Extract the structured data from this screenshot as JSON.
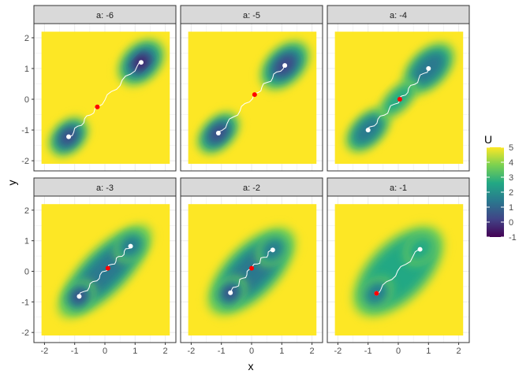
{
  "chart_data": {
    "type": "heatmap",
    "xlabel": "x",
    "ylabel": "y",
    "xlim": [
      -2.35,
      2.35
    ],
    "ylim": [
      -2.33,
      2.46
    ],
    "x_ticks": [
      -2,
      -1,
      0,
      1,
      2
    ],
    "y_ticks": [
      -2,
      -1,
      0,
      1,
      2
    ],
    "grid": true,
    "legend": {
      "title": "U",
      "position": "right",
      "range": [
        -1,
        5
      ],
      "ticks": [
        5,
        4,
        3,
        2,
        1,
        0,
        -1
      ],
      "colors": [
        "#440154",
        "#414487",
        "#2A788E",
        "#22A884",
        "#7AD151",
        "#FDE725"
      ]
    },
    "facets": [
      {
        "label": "a: -6",
        "a": -6,
        "minima": [
          [
            -1.2,
            -1.22
          ],
          [
            1.2,
            1.2
          ]
        ],
        "saddle": [
          -0.25,
          -0.25
        ]
      },
      {
        "label": "a: -5",
        "a": -5,
        "minima": [
          [
            -1.1,
            -1.1
          ],
          [
            1.1,
            1.1
          ]
        ],
        "saddle": [
          0.1,
          0.15
        ]
      },
      {
        "label": "a: -4",
        "a": -4,
        "minima": [
          [
            -1.0,
            -1.0
          ],
          [
            1.0,
            1.0
          ]
        ],
        "saddle": [
          0.05,
          0.0
        ]
      },
      {
        "label": "a: -3",
        "a": -3,
        "minima": [
          [
            -0.85,
            -0.82
          ],
          [
            0.85,
            0.82
          ]
        ],
        "saddle": [
          0.1,
          0.1
        ]
      },
      {
        "label": "a: -2",
        "a": -2,
        "minima": [
          [
            -0.7,
            -0.7
          ],
          [
            0.7,
            0.7
          ]
        ],
        "saddle": [
          0.0,
          0.1
        ]
      },
      {
        "label": "a: -1",
        "a": -1,
        "minima": [
          [
            -0.72,
            -0.72
          ],
          [
            0.72,
            0.72
          ]
        ],
        "saddle": [
          -0.72,
          -0.72
        ]
      }
    ]
  }
}
